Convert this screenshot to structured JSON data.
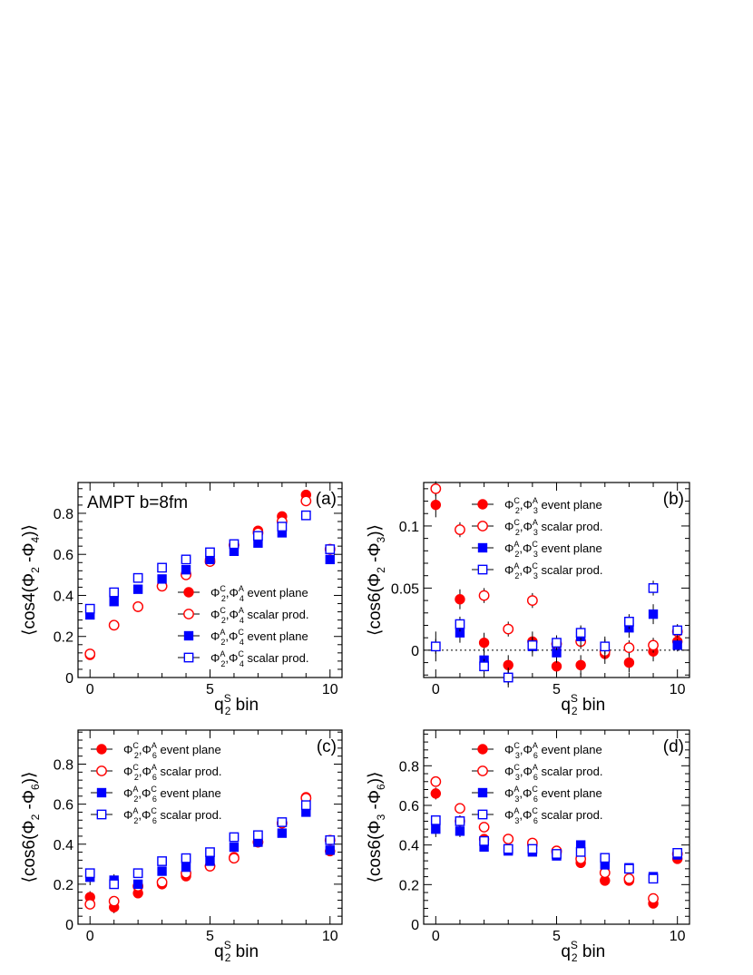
{
  "chart_data": [
    {
      "type": "scatter",
      "panel_label": "(a)",
      "annotation": "AMPT b=8fm",
      "ylabel_parts": [
        "⟨cos4(Φ",
        "2",
        " -Φ",
        "4",
        ")⟩"
      ],
      "xlabel_parts": [
        "q",
        "2",
        "S",
        " bin"
      ],
      "xlim": [
        -0.5,
        10.5
      ],
      "ylim": [
        0,
        0.95
      ],
      "xticks": [
        0,
        5,
        10
      ],
      "yticks": [
        0,
        0.2,
        0.4,
        0.6,
        0.8
      ],
      "ytick_labels": [
        "0",
        "0.2",
        "0.4",
        "0.6",
        "0.8"
      ],
      "legend_position": "bottom-right",
      "series": [
        {
          "name": "Φ2C,Φ4A event plane",
          "legend_parts": [
            "Φ",
            "2",
            "C",
            ",Φ",
            "4",
            "A",
            " event plane"
          ],
          "color": "#ff0000",
          "marker": "circle-filled",
          "x": [
            0,
            1,
            2,
            3,
            4,
            5,
            6,
            7,
            8,
            9,
            10
          ],
          "y": [
            0.11,
            0.255,
            0.345,
            0.445,
            0.505,
            0.575,
            0.645,
            0.715,
            0.785,
            0.89,
            0.625
          ]
        },
        {
          "name": "Φ2C,Φ4A scalar prod.",
          "legend_parts": [
            "Φ",
            "2",
            "C",
            ",Φ",
            "4",
            "A",
            " scalar prod."
          ],
          "color": "#ff0000",
          "marker": "circle-open",
          "x": [
            0,
            1,
            2,
            3,
            4,
            5,
            6,
            7,
            8,
            9,
            10
          ],
          "y": [
            0.115,
            0.255,
            0.345,
            0.445,
            0.5,
            0.565,
            0.645,
            0.705,
            0.76,
            0.86,
            0.625
          ]
        },
        {
          "name": "Φ2A,Φ4C event plane",
          "legend_parts": [
            "Φ",
            "2",
            "A",
            ",Φ",
            "4",
            "C",
            " event plane"
          ],
          "color": "#0000ff",
          "marker": "square-filled",
          "x": [
            0,
            1,
            2,
            3,
            4,
            5,
            6,
            7,
            8,
            9,
            10
          ],
          "y": [
            0.305,
            0.37,
            0.43,
            0.48,
            0.525,
            0.575,
            0.615,
            0.655,
            0.705,
            0.79,
            0.575
          ]
        },
        {
          "name": "Φ2A,Φ4C scalar prod.",
          "legend_parts": [
            "Φ",
            "2",
            "A",
            ",Φ",
            "4",
            "C",
            " scalar prod."
          ],
          "color": "#0000ff",
          "marker": "square-open",
          "x": [
            0,
            1,
            2,
            3,
            4,
            5,
            6,
            7,
            8,
            9,
            10
          ],
          "y": [
            0.335,
            0.415,
            0.485,
            0.535,
            0.575,
            0.61,
            0.65,
            0.69,
            0.735,
            0.79,
            0.625
          ]
        }
      ]
    },
    {
      "type": "scatter",
      "panel_label": "(b)",
      "ylabel_parts": [
        "⟨cos6(Φ",
        "2",
        " -Φ",
        "3",
        ")⟩"
      ],
      "xlabel_parts": [
        "q",
        "2",
        "S",
        " bin"
      ],
      "xlim": [
        -0.5,
        10.5
      ],
      "ylim": [
        -0.022,
        0.135
      ],
      "xticks": [
        0,
        5,
        10
      ],
      "yticks": [
        0,
        0.05,
        0.1
      ],
      "ytick_labels": [
        "0",
        "0.05",
        "0.1"
      ],
      "zero_line": true,
      "legend_position": "top-center",
      "series": [
        {
          "name": "Φ2C,Φ3A event plane",
          "legend_parts": [
            "Φ",
            "2",
            "C",
            ",Φ",
            "3",
            "A",
            " event plane"
          ],
          "color": "#ff0000",
          "marker": "circle-filled",
          "x": [
            0,
            1,
            2,
            3,
            4,
            5,
            6,
            7,
            8,
            9,
            10
          ],
          "y": [
            0.117,
            0.041,
            0.006,
            -0.012,
            0.007,
            -0.013,
            -0.012,
            -0.003,
            -0.01,
            -0.001,
            0.007
          ],
          "err": [
            0.01,
            0.008,
            0.008,
            0.008,
            0.008,
            0.008,
            0.008,
            0.008,
            0.008,
            0.008,
            0.005
          ]
        },
        {
          "name": "Φ2C,Φ3A scalar prod.",
          "legend_parts": [
            "Φ",
            "2",
            "C",
            ",Φ",
            "3",
            "A",
            " scalar prod."
          ],
          "color": "#ff0000",
          "marker": "circle-open",
          "x": [
            0,
            1,
            2,
            3,
            4,
            5,
            6,
            7,
            8,
            9,
            10
          ],
          "y": [
            0.13,
            0.097,
            0.044,
            0.017,
            0.04,
            0.005,
            0.007,
            -0.001,
            0.002,
            0.004,
            0.015
          ],
          "err": [
            0.006,
            0.006,
            0.006,
            0.006,
            0.006,
            0.006,
            0.006,
            0.006,
            0.006,
            0.006,
            0.005
          ]
        },
        {
          "name": "Φ2A,Φ3C event plane",
          "legend_parts": [
            "Φ",
            "2",
            "A",
            ",Φ",
            "3",
            "C",
            " event plane"
          ],
          "color": "#0000ff",
          "marker": "square-filled",
          "x": [
            0,
            1,
            2,
            3,
            4,
            5,
            6,
            7,
            8,
            9,
            10
          ],
          "y": [
            0.003,
            0.014,
            -0.008,
            -0.022,
            0.003,
            -0.002,
            0.011,
            0.003,
            0.018,
            0.029,
            0.004
          ],
          "err": [
            0.012,
            0.008,
            0.008,
            0.008,
            0.008,
            0.008,
            0.008,
            0.008,
            0.008,
            0.008,
            0.005
          ]
        },
        {
          "name": "Φ2A,Φ3C scalar prod.",
          "legend_parts": [
            "Φ",
            "2",
            "A",
            ",Φ",
            "3",
            "C",
            " scalar prod."
          ],
          "color": "#0000ff",
          "marker": "square-open",
          "x": [
            0,
            1,
            2,
            3,
            4,
            5,
            6,
            7,
            8,
            9,
            10
          ],
          "y": [
            0.003,
            0.021,
            -0.013,
            -0.022,
            0.004,
            0.006,
            0.014,
            0.003,
            0.023,
            0.05,
            0.016
          ],
          "err": [
            0.006,
            0.006,
            0.006,
            0.006,
            0.006,
            0.006,
            0.006,
            0.006,
            0.006,
            0.006,
            0.005
          ]
        }
      ]
    },
    {
      "type": "scatter",
      "panel_label": "(c)",
      "ylabel_parts": [
        "⟨cos6(Φ",
        "2",
        " -Φ",
        "6",
        ")⟩"
      ],
      "xlabel_parts": [
        "q",
        "2",
        "S",
        " bin"
      ],
      "xlim": [
        -0.5,
        10.5
      ],
      "ylim": [
        0,
        0.97
      ],
      "xticks": [
        0,
        5,
        10
      ],
      "yticks": [
        0,
        0.2,
        0.4,
        0.6,
        0.8
      ],
      "ytick_labels": [
        "0",
        "0.2",
        "0.4",
        "0.6",
        "0.8"
      ],
      "legend_position": "top-left",
      "series": [
        {
          "name": "Φ2C,Φ6A event plane",
          "legend_parts": [
            "Φ",
            "2",
            "C",
            ",Φ",
            "6",
            "A",
            " event plane"
          ],
          "color": "#ff0000",
          "marker": "circle-filled",
          "x": [
            0,
            1,
            2,
            3,
            4,
            5,
            6,
            7,
            8,
            9,
            10
          ],
          "y": [
            0.135,
            0.085,
            0.155,
            0.2,
            0.24,
            0.29,
            0.335,
            0.41,
            0.505,
            0.635,
            0.365
          ],
          "err": [
            0.03,
            0.03,
            0.02,
            0.015,
            0.015,
            0.015,
            0.015,
            0.015,
            0.015,
            0.015,
            0.015
          ]
        },
        {
          "name": "Φ2C,Φ6A scalar prod.",
          "legend_parts": [
            "Φ",
            "2",
            "C",
            ",Φ",
            "6",
            "A",
            " scalar prod."
          ],
          "color": "#ff0000",
          "marker": "circle-open",
          "x": [
            0,
            1,
            2,
            3,
            4,
            5,
            6,
            7,
            8,
            9,
            10
          ],
          "y": [
            0.1,
            0.115,
            0.19,
            0.21,
            0.255,
            0.29,
            0.33,
            0.41,
            0.505,
            0.63,
            0.42
          ],
          "err": [
            0.01,
            0.01,
            0.01,
            0.01,
            0.01,
            0.01,
            0.01,
            0.01,
            0.01,
            0.01,
            0.01
          ]
        },
        {
          "name": "Φ2A,Φ6C event plane",
          "legend_parts": [
            "Φ",
            "2",
            "A",
            ",Φ",
            "6",
            "C",
            " event plane"
          ],
          "color": "#0000ff",
          "marker": "square-filled",
          "x": [
            0,
            1,
            2,
            3,
            4,
            5,
            6,
            7,
            8,
            9,
            10
          ],
          "y": [
            0.235,
            0.22,
            0.2,
            0.265,
            0.285,
            0.315,
            0.385,
            0.41,
            0.455,
            0.56,
            0.37
          ],
          "err": [
            0.04,
            0.03,
            0.02,
            0.015,
            0.015,
            0.015,
            0.015,
            0.015,
            0.015,
            0.015,
            0.015
          ]
        },
        {
          "name": "Φ2A,Φ6C scalar prod.",
          "legend_parts": [
            "Φ",
            "2",
            "A",
            ",Φ",
            "6",
            "C",
            " scalar prod."
          ],
          "color": "#0000ff",
          "marker": "square-open",
          "x": [
            0,
            1,
            2,
            3,
            4,
            5,
            6,
            7,
            8,
            9,
            10
          ],
          "y": [
            0.255,
            0.2,
            0.255,
            0.315,
            0.33,
            0.36,
            0.435,
            0.445,
            0.51,
            0.595,
            0.42
          ],
          "err": [
            0.01,
            0.01,
            0.01,
            0.01,
            0.01,
            0.01,
            0.01,
            0.01,
            0.01,
            0.01,
            0.01
          ]
        }
      ]
    },
    {
      "type": "scatter",
      "panel_label": "(d)",
      "ylabel_parts": [
        "⟨cos6(Φ",
        "3",
        " -Φ",
        "6",
        ")⟩"
      ],
      "xlabel_parts": [
        "q",
        "2",
        "S",
        " bin"
      ],
      "xlim": [
        -0.5,
        10.5
      ],
      "ylim": [
        0,
        0.98
      ],
      "xticks": [
        0,
        5,
        10
      ],
      "yticks": [
        0,
        0.2,
        0.4,
        0.6,
        0.8
      ],
      "ytick_labels": [
        "0",
        "0.2",
        "0.4",
        "0.6",
        "0.8"
      ],
      "legend_position": "top-center",
      "series": [
        {
          "name": "Φ3C,Φ6A event plane",
          "legend_parts": [
            "Φ",
            "3",
            "C",
            ",Φ",
            "6",
            "A",
            " event plane"
          ],
          "color": "#ff0000",
          "marker": "circle-filled",
          "x": [
            0,
            1,
            2,
            3,
            4,
            5,
            6,
            7,
            8,
            9,
            10
          ],
          "y": [
            0.66,
            0.52,
            0.43,
            0.43,
            0.4,
            0.36,
            0.31,
            0.22,
            0.22,
            0.105,
            0.33
          ],
          "err": [
            0.03,
            0.03,
            0.025,
            0.02,
            0.02,
            0.015,
            0.015,
            0.015,
            0.015,
            0.015,
            0.015
          ]
        },
        {
          "name": "Φ3C,Φ6A scalar prod.",
          "legend_parts": [
            "Φ",
            "3",
            "C",
            ",Φ",
            "6",
            "A",
            " scalar prod."
          ],
          "color": "#ff0000",
          "marker": "circle-open",
          "x": [
            0,
            1,
            2,
            3,
            4,
            5,
            6,
            7,
            8,
            9,
            10
          ],
          "y": [
            0.72,
            0.585,
            0.49,
            0.43,
            0.41,
            0.37,
            0.33,
            0.26,
            0.23,
            0.13,
            0.355
          ],
          "err": [
            0.01,
            0.01,
            0.01,
            0.01,
            0.01,
            0.01,
            0.01,
            0.01,
            0.01,
            0.01,
            0.01
          ]
        },
        {
          "name": "Φ3A,Φ6C event plane",
          "legend_parts": [
            "Φ",
            "3",
            "A",
            ",Φ",
            "6",
            "C",
            " event plane"
          ],
          "color": "#0000ff",
          "marker": "square-filled",
          "x": [
            0,
            1,
            2,
            3,
            4,
            5,
            6,
            7,
            8,
            9,
            10
          ],
          "y": [
            0.48,
            0.47,
            0.39,
            0.37,
            0.365,
            0.345,
            0.4,
            0.3,
            0.285,
            0.24,
            0.35
          ],
          "err": [
            0.04,
            0.03,
            0.02,
            0.02,
            0.015,
            0.015,
            0.015,
            0.015,
            0.015,
            0.015,
            0.015
          ]
        },
        {
          "name": "Φ3A,Φ6C scalar prod.",
          "legend_parts": [
            "Φ",
            "3",
            "A",
            ",Φ",
            "6",
            "C",
            " scalar prod."
          ],
          "color": "#0000ff",
          "marker": "square-open",
          "x": [
            0,
            1,
            2,
            3,
            4,
            5,
            6,
            7,
            8,
            9,
            10
          ],
          "y": [
            0.525,
            0.52,
            0.42,
            0.38,
            0.38,
            0.355,
            0.365,
            0.335,
            0.28,
            0.23,
            0.36
          ],
          "err": [
            0.01,
            0.01,
            0.01,
            0.01,
            0.01,
            0.01,
            0.01,
            0.01,
            0.01,
            0.01,
            0.01
          ]
        }
      ]
    }
  ]
}
